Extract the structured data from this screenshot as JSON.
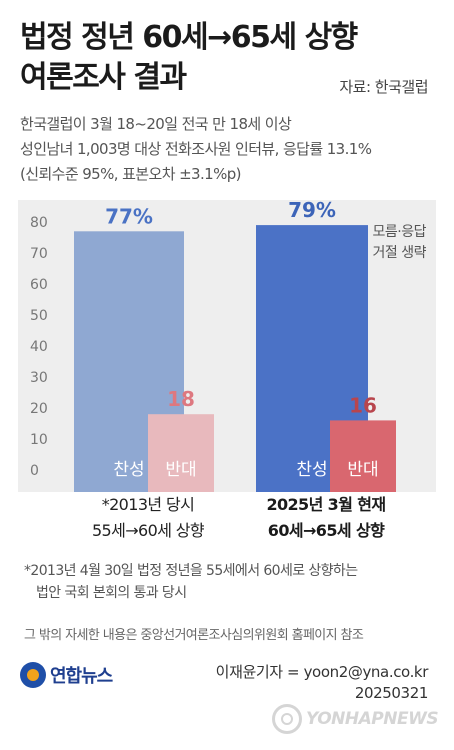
{
  "header": {
    "title_line1": "법정 정년 60세→65세 상향",
    "title_line2": "여론조사 결과",
    "source": "자료: 한국갤럽"
  },
  "description": {
    "line1": "한국갤럽이 3월 18~20일 전국 만 18세 이상",
    "line2": "성인남녀 1,003명 대상 전화조사원 인터뷰, 응답률 13.1%",
    "line3": "(신뢰수준 95%, 표본오차 ±3.1%p)"
  },
  "side_note": {
    "line1": "모름·응답",
    "line2": "거절 생략"
  },
  "chart_data": {
    "type": "bar",
    "title": "",
    "ylim": [
      0,
      80
    ],
    "yticks": [
      0,
      10,
      20,
      30,
      40,
      50,
      60,
      70,
      80
    ],
    "grid": false,
    "groups": [
      {
        "label_line1": "*2013년 당시",
        "label_line2": "55세→60세 상향",
        "bars": [
          {
            "label": "찬성",
            "value": 77,
            "value_label": "77%",
            "color": "#8fa8d2",
            "value_color": "#4a72c4"
          },
          {
            "label": "반대",
            "value": 18,
            "value_label": "18",
            "color": "#e8b9bd",
            "value_color": "#de7880"
          }
        ]
      },
      {
        "label_line1": "2025년 3월 현재",
        "label_line2": "60세→65세 상향",
        "bars": [
          {
            "label": "찬성",
            "value": 79,
            "value_label": "79%",
            "color": "#4b72c6",
            "value_color": "#3c64b8"
          },
          {
            "label": "반대",
            "value": 16,
            "value_label": "16",
            "color": "#d9676f",
            "value_color": "#b8454d"
          }
        ]
      }
    ]
  },
  "footnote": {
    "line1": "*2013년 4월 30일 법정 정년을 55세에서 60세로 상향하는",
    "line2": "법안 국회 본회의 통과 당시"
  },
  "reference_note": "그 밖의 자세한 내용은 중앙선거여론조사심의위원회 홈페이지 참조",
  "footer": {
    "logo": "연합뉴스",
    "credit_line1": "이재윤기자 = yoon2@yna.co.kr",
    "credit_line2": "20250321",
    "watermark": "YONHAPNEWS"
  }
}
